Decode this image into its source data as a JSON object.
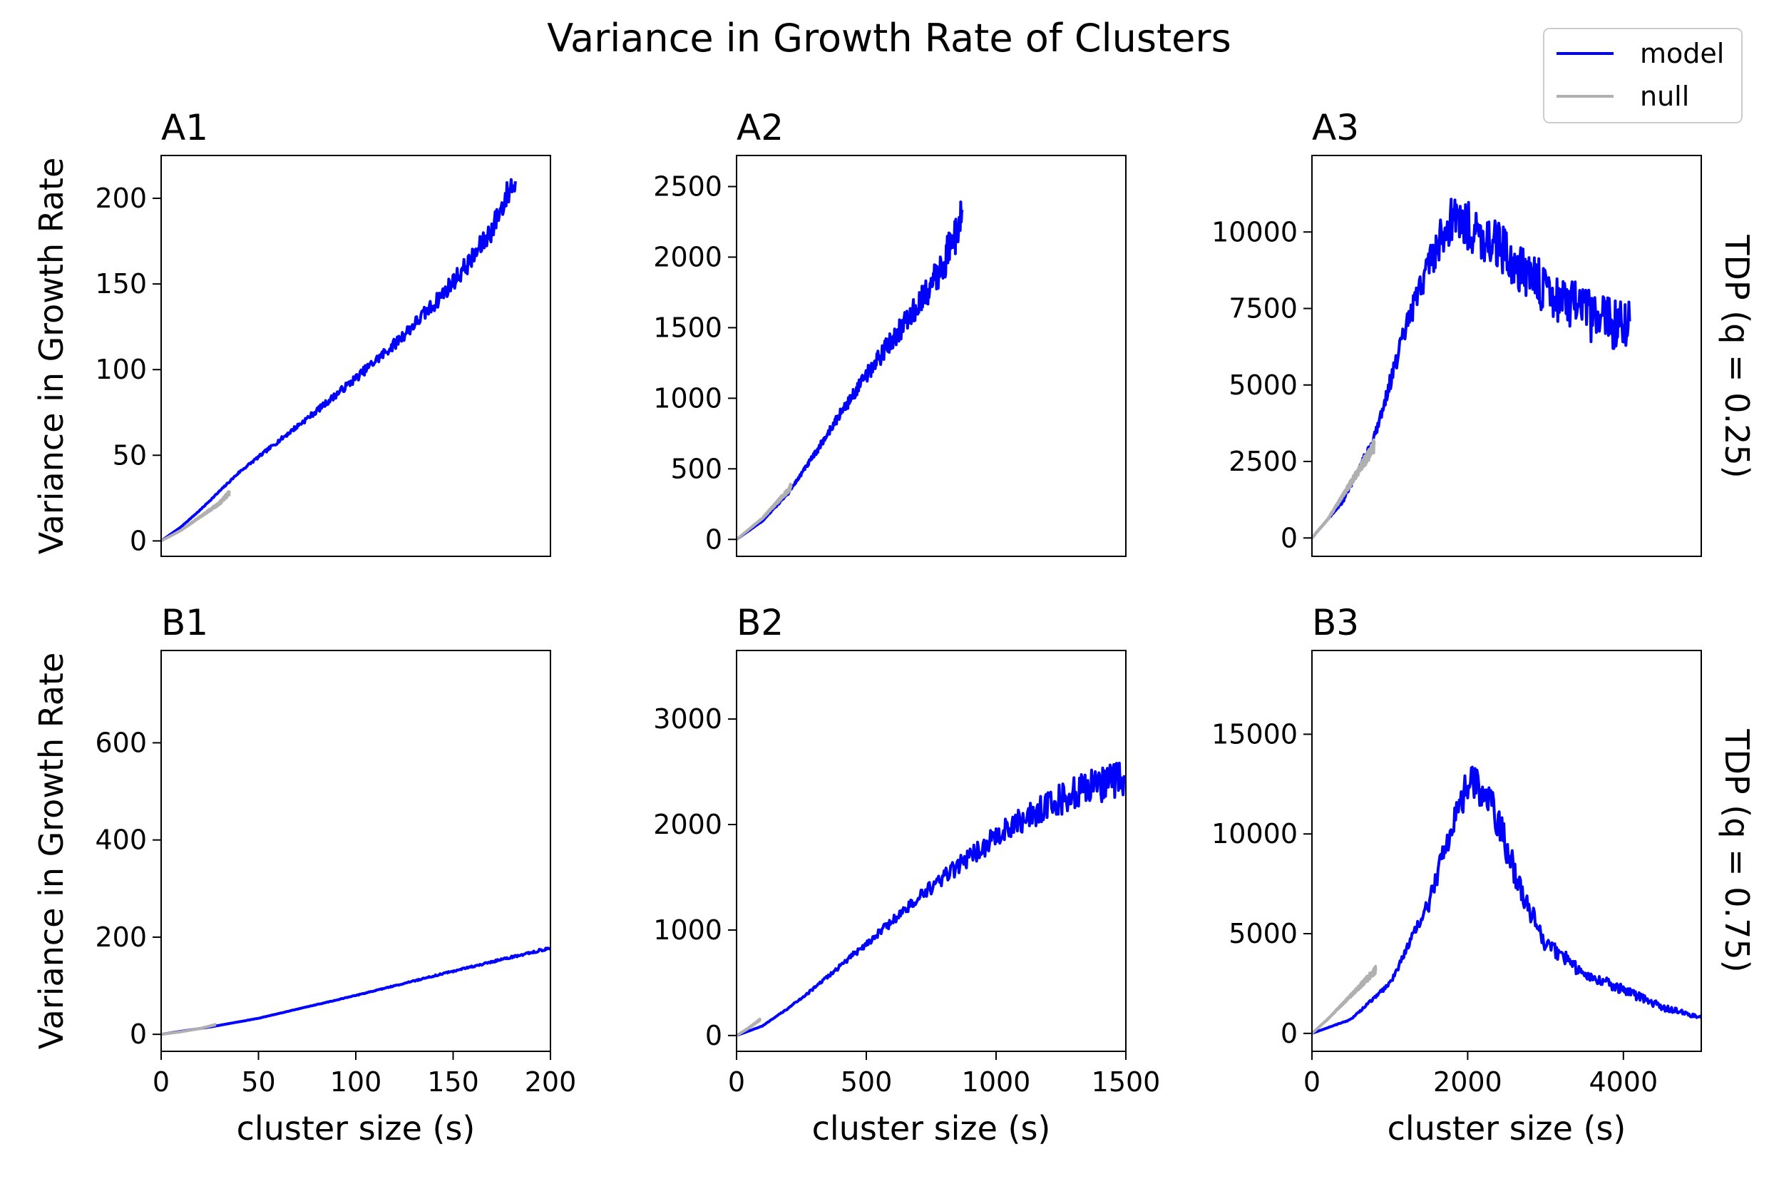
{
  "figure": {
    "title": "Variance in Growth Rate of Clusters",
    "row_labels": [
      "TDP (q = 0.25)",
      "TDP (q = 0.75)"
    ],
    "ylabel": "Variance in Growth Rate",
    "xlabel": "cluster size (s)"
  },
  "legend": {
    "placement": "top-right",
    "items": [
      {
        "label": "model",
        "color": "#0000ff"
      },
      {
        "label": "null",
        "color": "#b0b0b0"
      }
    ]
  },
  "colors": {
    "model": "#0000ff",
    "null": "#b0b0b0"
  },
  "chart_data": [
    {
      "id": "A1",
      "type": "line",
      "title": "A1",
      "grid": false,
      "xlim": [
        0,
        200
      ],
      "ylim": [
        -9,
        225
      ],
      "xticks": [],
      "yticks": [
        0,
        50,
        100,
        150,
        200
      ],
      "xlabel": "",
      "ylabel": "Variance in Growth Rate",
      "series": [
        {
          "name": "model",
          "noise": 0.04,
          "x": [
            0,
            10,
            20,
            40,
            60,
            80,
            100,
            120,
            140,
            160,
            170,
            180,
            182
          ],
          "y": [
            0,
            8,
            18,
            40,
            58,
            76,
            95,
            115,
            138,
            165,
            182,
            208,
            207
          ]
        },
        {
          "name": "null",
          "noise": 0.05,
          "x": [
            0,
            10,
            20,
            30,
            35
          ],
          "y": [
            0,
            6,
            14,
            22,
            28
          ]
        }
      ]
    },
    {
      "id": "A2",
      "type": "line",
      "title": "A2",
      "grid": false,
      "xlim": [
        0,
        1500
      ],
      "ylim": [
        -120,
        2720
      ],
      "xticks": [],
      "yticks": [
        0,
        500,
        1000,
        1500,
        2000,
        2500
      ],
      "xlabel": "",
      "ylabel": "",
      "series": [
        {
          "name": "model",
          "noise": 0.07,
          "x": [
            0,
            100,
            200,
            300,
            400,
            500,
            600,
            700,
            800,
            870
          ],
          "y": [
            0,
            130,
            330,
            600,
            890,
            1160,
            1420,
            1650,
            1960,
            2300
          ]
        },
        {
          "name": "null",
          "noise": 0.05,
          "x": [
            0,
            100,
            200,
            210
          ],
          "y": [
            0,
            150,
            350,
            380
          ]
        }
      ]
    },
    {
      "id": "A3",
      "type": "line",
      "title": "A3",
      "grid": false,
      "xlim": [
        0,
        5000
      ],
      "ylim": [
        -600,
        12500
      ],
      "xticks": [],
      "yticks": [
        0,
        2500,
        5000,
        7500,
        10000
      ],
      "xlabel": "",
      "ylabel": "",
      "series": [
        {
          "name": "model",
          "noise": 0.13,
          "x": [
            0,
            400,
            800,
            1200,
            1500,
            1800,
            2000,
            2400,
            2800,
            3200,
            3600,
            4000,
            4080
          ],
          "y": [
            0,
            1200,
            3300,
            6800,
            9000,
            10500,
            10200,
            9500,
            8500,
            7800,
            7200,
            7000,
            7000
          ]
        },
        {
          "name": "null",
          "noise": 0.08,
          "x": [
            0,
            200,
            400,
            600,
            800
          ],
          "y": [
            0,
            600,
            1400,
            2200,
            3000
          ]
        }
      ]
    },
    {
      "id": "B1",
      "type": "line",
      "title": "B1",
      "grid": false,
      "xlim": [
        0,
        200
      ],
      "ylim": [
        -35,
        790
      ],
      "xticks": [
        0,
        50,
        100,
        150,
        200
      ],
      "yticks": [
        0,
        200,
        400,
        600
      ],
      "xlabel": "cluster size (s)",
      "ylabel": "Variance in Growth Rate",
      "series": [
        {
          "name": "model",
          "noise": 0.015,
          "x": [
            0,
            25,
            50,
            100,
            150,
            200
          ],
          "y": [
            0,
            15,
            33,
            80,
            130,
            178
          ]
        },
        {
          "name": "null",
          "noise": 0.02,
          "x": [
            0,
            10,
            20,
            28
          ],
          "y": [
            0,
            5,
            12,
            20
          ]
        }
      ]
    },
    {
      "id": "B2",
      "type": "line",
      "title": "B2",
      "grid": false,
      "xlim": [
        0,
        1500
      ],
      "ylim": [
        -150,
        3650
      ],
      "xticks": [
        0,
        500,
        1000,
        1500
      ],
      "yticks": [
        0,
        1000,
        2000,
        3000
      ],
      "xlabel": "cluster size (s)",
      "ylabel": "",
      "series": [
        {
          "name": "model",
          "noise": 0.08,
          "x": [
            0,
            100,
            200,
            300,
            500,
            700,
            900,
            1100,
            1300,
            1500
          ],
          "y": [
            0,
            90,
            260,
            450,
            870,
            1300,
            1700,
            2050,
            2300,
            2450
          ]
        },
        {
          "name": "null",
          "noise": 0.05,
          "x": [
            0,
            40,
            80,
            90
          ],
          "y": [
            0,
            60,
            130,
            150
          ]
        }
      ]
    },
    {
      "id": "B3",
      "type": "line",
      "title": "B3",
      "grid": false,
      "xlim": [
        0,
        5000
      ],
      "ylim": [
        -900,
        19200
      ],
      "xticks": [
        0,
        2000,
        4000
      ],
      "yticks": [
        0,
        5000,
        10000,
        15000
      ],
      "xlabel": "cluster size (s)",
      "ylabel": "",
      "series": [
        {
          "name": "model",
          "noise": 0.14,
          "x": [
            0,
            500,
            1000,
            1500,
            1800,
            2000,
            2200,
            2400,
            2700,
            3000,
            3500,
            4000,
            4500,
            5000
          ],
          "y": [
            0,
            700,
            2500,
            6500,
            10500,
            12500,
            12300,
            10500,
            7000,
            4500,
            3000,
            2200,
            1300,
            800
          ]
        },
        {
          "name": "null",
          "noise": 0.06,
          "x": [
            0,
            200,
            400,
            600,
            800,
            820
          ],
          "y": [
            0,
            700,
            1500,
            2300,
            3100,
            3200
          ]
        }
      ]
    }
  ]
}
